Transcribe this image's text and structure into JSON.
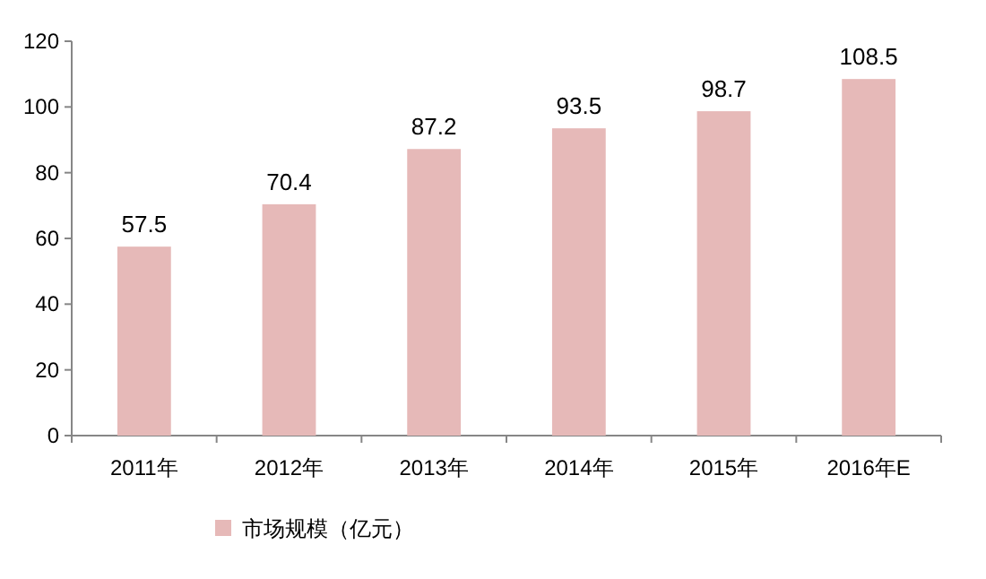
{
  "chart_data": {
    "type": "bar",
    "categories": [
      "2011年",
      "2012年",
      "2013年",
      "2014年",
      "2015年",
      "2016年E"
    ],
    "series": [
      {
        "name": "市场规模（亿元）",
        "color": "#e6b9b8",
        "values": [
          57.5,
          70.4,
          87.2,
          93.5,
          98.7,
          108.5
        ]
      }
    ],
    "ylim": [
      0,
      120
    ],
    "yticks": [
      0,
      20,
      40,
      60,
      80,
      100,
      120
    ],
    "data_labels": true,
    "legend": "bottom left"
  }
}
